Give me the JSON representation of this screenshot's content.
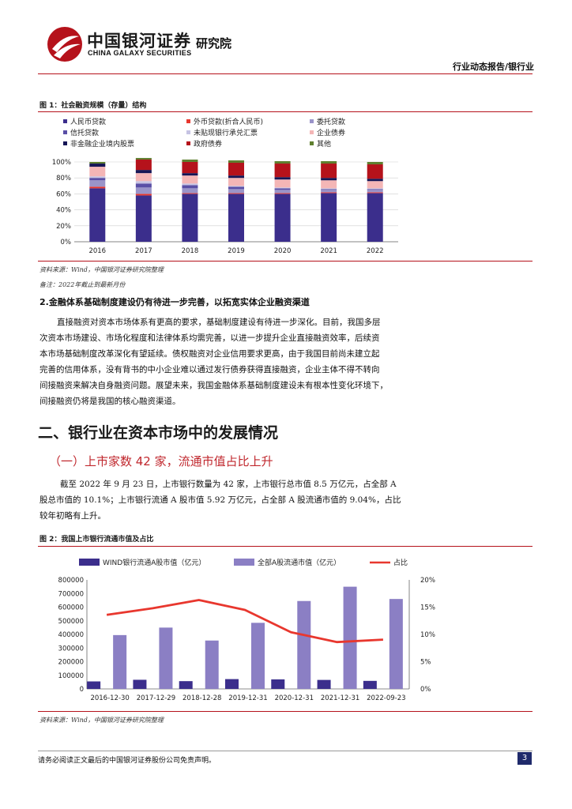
{
  "header": {
    "brand_cn": "中国银河证券",
    "brand_en": "CHINA GALAXY SECURITIES",
    "brand_sub": "研究院",
    "report_type": "行业动态报告/银行业"
  },
  "figure1": {
    "title": "图 1：社会融资规模（存量）结构",
    "source": "资料来源：Wind，中国银河证券研究院整理",
    "note": "备注：2022年截止到最新月份"
  },
  "section2": {
    "heading": "2.金融体系基础制度建设仍有待进一步完善，以拓宽实体企业融资渠道",
    "paragraph_lines": [
      "直接融资对资本市场体系有更高的要求，基础制度建设有待进一步深化。目前，我国多层",
      "次资本市场建设、市场化程度和法律体系均需完善，以进一步提升企业直接融资效率，后续资",
      "本市场基础制度改革深化有望延续。债权融资对企业信用要求更高，由于我国目前尚未建立起",
      "完善的信用体系，没有背书的中小企业难以通过发行债券获得直接融资，企业主体不得不转向",
      "间接融资来解决自身融资问题。展望未来，我国金融体系基础制度建设未有根本性变化环境下，",
      "间接融资仍将是我国的核心融资渠道。"
    ]
  },
  "chapter": {
    "heading": "二、银行业在资本市场中的发展情况",
    "sub_heading": "（一）上市家数 42 家，流通市值占比上升",
    "paragraph_lines": [
      "截至 2022 年 9 月 23 日，上市银行数量为 42 家，上市银行总市值 8.5 万亿元，占全部 A",
      "股总市值的 10.1%；上市银行流通 A 股市值 5.92 万亿元，占全部 A 股流通市值的 9.04%，占比",
      "较年初略有上升。"
    ]
  },
  "figure2": {
    "title": "图 2：我国上市银行流通市值及占比",
    "source": "资料来源：Wind，中国银河证券研究院整理"
  },
  "footer": {
    "disclaimer": "请务必阅读正文最后的中国银河证券股份公司免责声明。",
    "page": "3"
  },
  "colors": {
    "brand_red": "#b5121b",
    "navy": "#1f2a6b",
    "bar_dark": "#3b2e8c",
    "bar_light": "#8b7fc4",
    "line_red": "#e8372e"
  },
  "chart_data": [
    {
      "type": "bar",
      "stacked": true,
      "percent": true,
      "categories": [
        "2016",
        "2017",
        "2018",
        "2019",
        "2020",
        "2021",
        "2022"
      ],
      "ylim": [
        0,
        100
      ],
      "yticks": [
        "0%",
        "20%",
        "40%",
        "60%",
        "80%",
        "100%"
      ],
      "legend_position": "top",
      "series": [
        {
          "name": "人民币贷款",
          "color": "#3b2e8c",
          "values": [
            67,
            58,
            60,
            60,
            60,
            61,
            61
          ]
        },
        {
          "name": "外币贷款(折合人民币)",
          "color": "#e8372e",
          "values": [
            2,
            2,
            1,
            1,
            1,
            1,
            1
          ]
        },
        {
          "name": "委托贷款",
          "color": "#9a94c9",
          "values": [
            8,
            8,
            6,
            5,
            4,
            3,
            3
          ]
        },
        {
          "name": "信托贷款",
          "color": "#5a4fa6",
          "values": [
            3,
            5,
            4,
            3,
            2,
            1,
            1
          ]
        },
        {
          "name": "未贴现银行承兑汇票",
          "color": "#c6c3e3",
          "values": [
            2,
            3,
            2,
            1,
            1,
            1,
            1
          ]
        },
        {
          "name": "企业债券",
          "color": "#f4b6b6",
          "values": [
            12,
            10,
            10,
            10,
            10,
            10,
            9
          ]
        },
        {
          "name": "非金融企业境内股票",
          "color": "#161656",
          "values": [
            4,
            4,
            3,
            3,
            3,
            3,
            3
          ]
        },
        {
          "name": "政府债券",
          "color": "#b5121b",
          "values": [
            0,
            13,
            14,
            16,
            17,
            18,
            18
          ]
        },
        {
          "name": "其他",
          "color": "#5f7f2f",
          "values": [
            2,
            2,
            3,
            3,
            3,
            3,
            3
          ]
        }
      ]
    },
    {
      "type": "bar",
      "categories": [
        "2016-12-30",
        "2017-12-29",
        "2018-12-28",
        "2019-12-31",
        "2020-12-31",
        "2021-12-31",
        "2022-09-23"
      ],
      "ylim": [
        0,
        800000
      ],
      "yticks": [
        "0",
        "100000",
        "200000",
        "300000",
        "400000",
        "500000",
        "600000",
        "700000",
        "800000"
      ],
      "y2lim": [
        0,
        20
      ],
      "y2ticks": [
        "0%",
        "5%",
        "10%",
        "15%",
        "20%"
      ],
      "legend_position": "top",
      "series": [
        {
          "name": "WIND银行流通A股市值（亿元）",
          "type": "bar",
          "color": "#3b2e8c",
          "values": [
            55000,
            67000,
            57000,
            72000,
            70000,
            66000,
            59000
          ]
        },
        {
          "name": "全部A股流通市值（亿元）",
          "type": "bar",
          "color": "#8b7fc4",
          "values": [
            395000,
            450000,
            355000,
            485000,
            645000,
            750000,
            660000
          ]
        },
        {
          "name": "占比",
          "type": "line",
          "axis": "right",
          "color": "#e8372e",
          "values": [
            13.6,
            14.8,
            16.3,
            14.5,
            10.4,
            8.6,
            9.04
          ]
        }
      ]
    }
  ]
}
